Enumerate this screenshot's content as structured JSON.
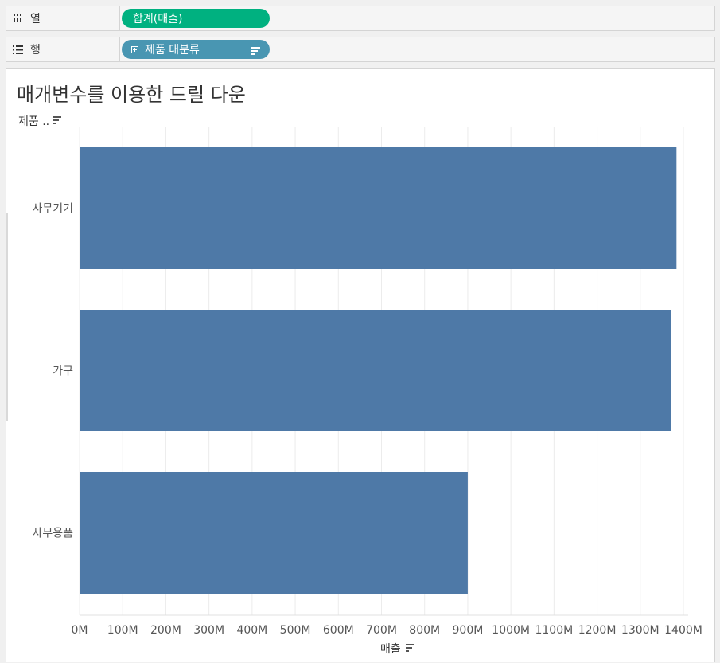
{
  "shelves": {
    "columns": {
      "label": "열",
      "icon": "columns-icon",
      "pill": "합계(매출)",
      "pill_color": "#00b180"
    },
    "rows": {
      "label": "행",
      "icon": "rows-icon",
      "pill": "제품 대분류",
      "pill_color": "#4996b2"
    }
  },
  "sheet": {
    "title": "매개변수를 이용한 드릴 다운",
    "row_header": "제품 ..",
    "x_axis_title": "매출"
  },
  "chart_data": {
    "type": "bar",
    "orientation": "horizontal",
    "title": "매개변수를 이용한 드릴 다운",
    "ylabel": "제품 ..",
    "xlabel": "매출",
    "categories": [
      "사무기기",
      "가구",
      "사무용품"
    ],
    "values": [
      1384,
      1371,
      900
    ],
    "value_unit": "M",
    "xlim": [
      0,
      1400
    ],
    "xticks": [
      0,
      100,
      200,
      300,
      400,
      500,
      600,
      700,
      800,
      900,
      1000,
      1100,
      1200,
      1300,
      1400
    ],
    "xtick_labels": [
      "0M",
      "100M",
      "200M",
      "300M",
      "400M",
      "500M",
      "600M",
      "700M",
      "800M",
      "900M",
      "1000M",
      "1100M",
      "1200M",
      "1300M",
      "1400M"
    ],
    "bar_color": "#4e79a7",
    "grid": "vertical"
  }
}
